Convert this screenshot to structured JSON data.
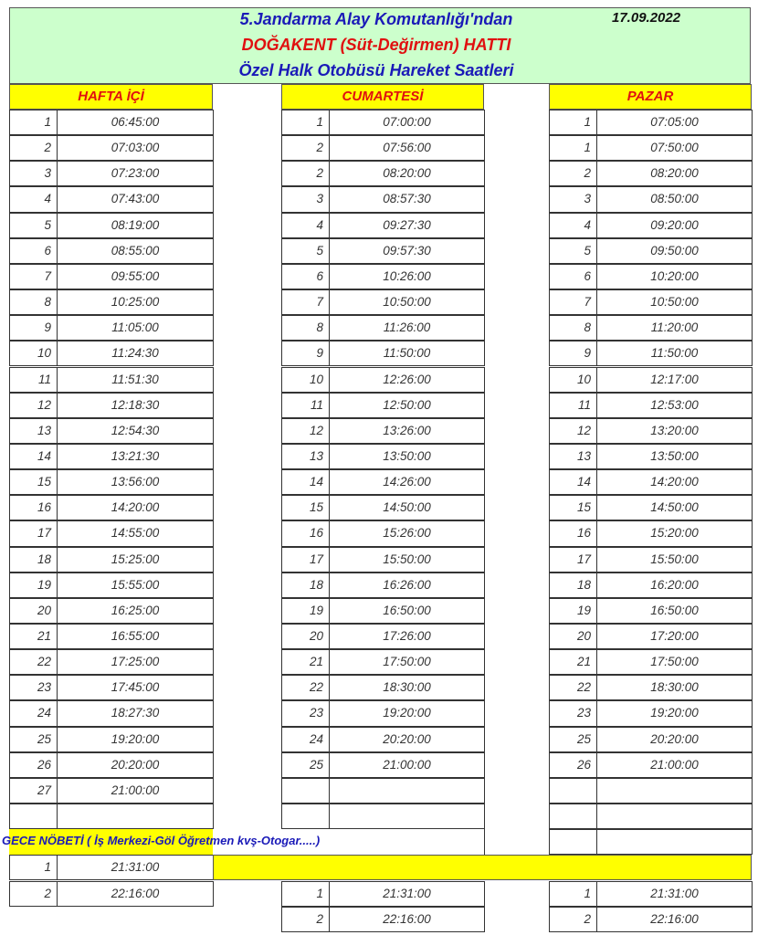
{
  "header": {
    "line1": "5.Jandarma Alay Komutanlığı'ndan",
    "line2": "DOĞAKENT (Süt-Değirmen) HATTI",
    "line3": "Özel Halk Otobüsü Hareket Saatleri",
    "date": "17.09.2022",
    "colors": {
      "background": "#ccffcc",
      "blue": "#1a1ab8",
      "red": "#e01010",
      "highlight": "#ffff00"
    }
  },
  "columns": [
    {
      "title": "HAFTA İÇİ",
      "rows": [
        [
          "1",
          "06:45:00"
        ],
        [
          "2",
          "07:03:00"
        ],
        [
          "3",
          "07:23:00"
        ],
        [
          "4",
          "07:43:00"
        ],
        [
          "5",
          "08:19:00"
        ],
        [
          "6",
          "08:55:00"
        ],
        [
          "7",
          "09:55:00"
        ],
        [
          "8",
          "10:25:00"
        ],
        [
          "9",
          "11:05:00"
        ],
        [
          "10",
          "11:24:30"
        ],
        [
          "11",
          "11:51:30"
        ],
        [
          "12",
          "12:18:30"
        ],
        [
          "13",
          "12:54:30"
        ],
        [
          "14",
          "13:21:30"
        ],
        [
          "15",
          "13:56:00"
        ],
        [
          "16",
          "14:20:00"
        ],
        [
          "17",
          "14:55:00"
        ],
        [
          "18",
          "15:25:00"
        ],
        [
          "19",
          "15:55:00"
        ],
        [
          "20",
          "16:25:00"
        ],
        [
          "21",
          "16:55:00"
        ],
        [
          "22",
          "17:25:00"
        ],
        [
          "23",
          "17:45:00"
        ],
        [
          "24",
          "18:27:30"
        ],
        [
          "25",
          "19:20:00"
        ],
        [
          "26",
          "20:20:00"
        ],
        [
          "27",
          "21:00:00"
        ]
      ],
      "night": [
        [
          "1",
          "21:31:00"
        ],
        [
          "2",
          "22:16:00"
        ]
      ]
    },
    {
      "title": "CUMARTESİ",
      "rows": [
        [
          "1",
          "07:00:00"
        ],
        [
          "2",
          "07:56:00"
        ],
        [
          "2",
          "08:20:00"
        ],
        [
          "3",
          "08:57:30"
        ],
        [
          "4",
          "09:27:30"
        ],
        [
          "5",
          "09:57:30"
        ],
        [
          "6",
          "10:26:00"
        ],
        [
          "7",
          "10:50:00"
        ],
        [
          "8",
          "11:26:00"
        ],
        [
          "9",
          "11:50:00"
        ],
        [
          "10",
          "12:26:00"
        ],
        [
          "11",
          "12:50:00"
        ],
        [
          "12",
          "13:26:00"
        ],
        [
          "13",
          "13:50:00"
        ],
        [
          "14",
          "14:26:00"
        ],
        [
          "15",
          "14:50:00"
        ],
        [
          "16",
          "15:26:00"
        ],
        [
          "17",
          "15:50:00"
        ],
        [
          "18",
          "16:26:00"
        ],
        [
          "19",
          "16:50:00"
        ],
        [
          "20",
          "17:26:00"
        ],
        [
          "21",
          "17:50:00"
        ],
        [
          "22",
          "18:30:00"
        ],
        [
          "23",
          "19:20:00"
        ],
        [
          "24",
          "20:20:00"
        ],
        [
          "25",
          "21:00:00"
        ]
      ],
      "night": [
        [
          "1",
          "21:31:00"
        ],
        [
          "2",
          "22:16:00"
        ]
      ]
    },
    {
      "title": "PAZAR",
      "rows": [
        [
          "1",
          "07:05:00"
        ],
        [
          "1",
          "07:50:00"
        ],
        [
          "2",
          "08:20:00"
        ],
        [
          "3",
          "08:50:00"
        ],
        [
          "4",
          "09:20:00"
        ],
        [
          "5",
          "09:50:00"
        ],
        [
          "6",
          "10:20:00"
        ],
        [
          "7",
          "10:50:00"
        ],
        [
          "8",
          "11:20:00"
        ],
        [
          "9",
          "11:50:00"
        ],
        [
          "10",
          "12:17:00"
        ],
        [
          "11",
          "12:53:00"
        ],
        [
          "12",
          "13:20:00"
        ],
        [
          "13",
          "13:50:00"
        ],
        [
          "14",
          "14:20:00"
        ],
        [
          "15",
          "14:50:00"
        ],
        [
          "16",
          "15:20:00"
        ],
        [
          "17",
          "15:50:00"
        ],
        [
          "18",
          "16:20:00"
        ],
        [
          "19",
          "16:50:00"
        ],
        [
          "20",
          "17:20:00"
        ],
        [
          "21",
          "17:50:00"
        ],
        [
          "22",
          "18:30:00"
        ],
        [
          "23",
          "19:20:00"
        ],
        [
          "25",
          "20:20:00"
        ],
        [
          "26",
          "21:00:00"
        ]
      ],
      "night": [
        [
          "1",
          "21:31:00"
        ],
        [
          "2",
          "22:16:00"
        ]
      ]
    }
  ],
  "night_shift": {
    "label": "GECE NÖBETİ ( İş Merkezi-Göl Öğretmen kvş-Otogar.....)"
  }
}
